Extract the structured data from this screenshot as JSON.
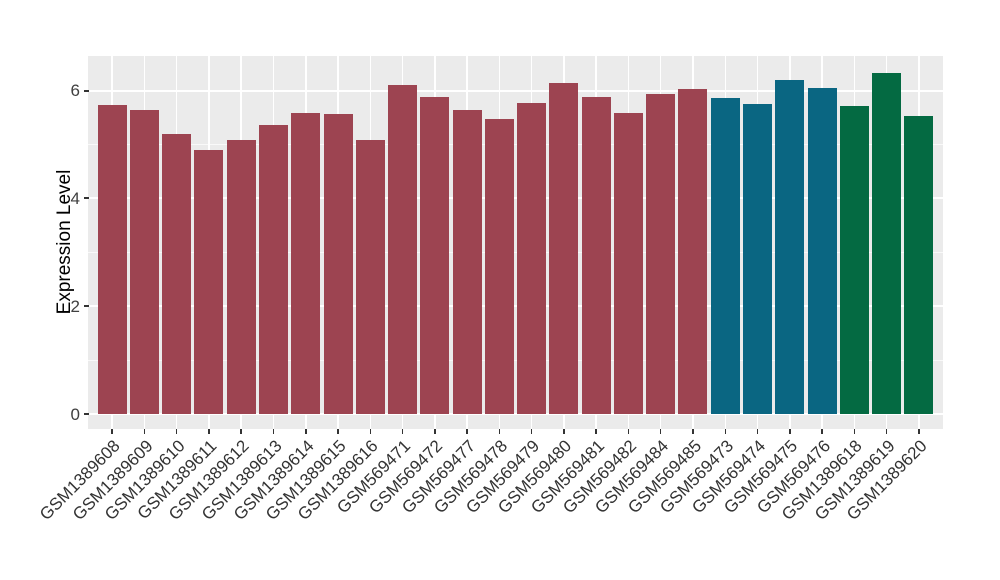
{
  "chart_data": {
    "type": "bar",
    "title": "",
    "xlabel": "",
    "ylabel": "Expression Level",
    "ylim": [
      0,
      6.63
    ],
    "yticks": [
      0,
      2,
      4,
      6
    ],
    "yticks_minor": [
      1,
      3,
      5
    ],
    "grid": "on",
    "legend_position": "none",
    "panel_background_color": "#EBEBEB",
    "gridline_color": "#FFFFFF",
    "categories": [
      "GSM1389608",
      "GSM1389609",
      "GSM1389610",
      "GSM1389611",
      "GSM1389612",
      "GSM1389613",
      "GSM1389614",
      "GSM1389615",
      "GSM1389616",
      "GSM569471",
      "GSM569472",
      "GSM569477",
      "GSM569478",
      "GSM569479",
      "GSM569480",
      "GSM569481",
      "GSM569482",
      "GSM569484",
      "GSM569485",
      "GSM569473",
      "GSM569474",
      "GSM569475",
      "GSM569476",
      "GSM1389618",
      "GSM1389619",
      "GSM1389620"
    ],
    "values": [
      5.74,
      5.64,
      5.2,
      4.9,
      5.09,
      5.37,
      5.58,
      5.57,
      5.09,
      6.1,
      5.88,
      5.64,
      5.48,
      5.77,
      6.14,
      5.88,
      5.58,
      5.93,
      6.03,
      5.86,
      5.75,
      6.2,
      6.04,
      5.72,
      6.32,
      5.52
    ],
    "bar_groups": [
      "maroon",
      "maroon",
      "maroon",
      "maroon",
      "maroon",
      "maroon",
      "maroon",
      "maroon",
      "maroon",
      "maroon",
      "maroon",
      "maroon",
      "maroon",
      "maroon",
      "maroon",
      "maroon",
      "maroon",
      "maroon",
      "maroon",
      "teal",
      "teal",
      "teal",
      "teal",
      "green",
      "green",
      "green"
    ],
    "group_colors": {
      "maroon": "#9D4451",
      "teal": "#0A6682",
      "green": "#046A42"
    }
  }
}
